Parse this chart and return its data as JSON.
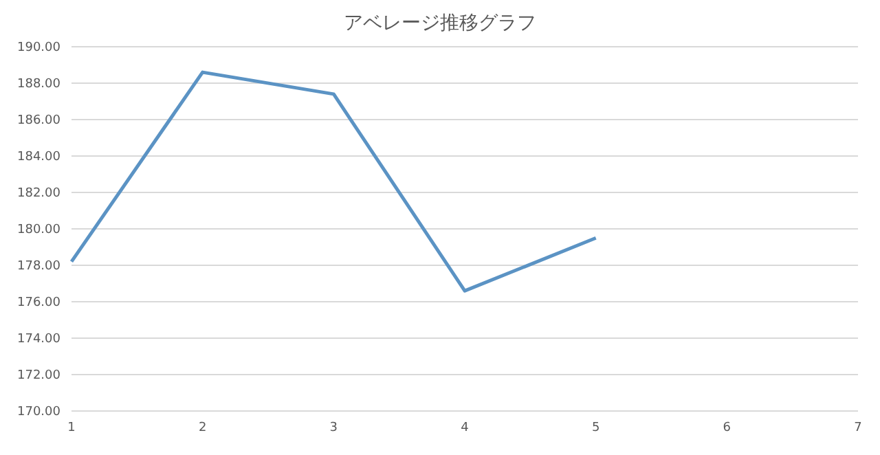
{
  "chart_data": {
    "type": "line",
    "title": "アベレージ推移グラフ",
    "categories": [
      "1",
      "2",
      "3",
      "4",
      "5",
      "6",
      "7"
    ],
    "series": [
      {
        "color": "#5b93c4",
        "values": [
          178.2,
          188.6,
          187.4,
          176.6,
          179.5,
          null,
          null
        ]
      }
    ],
    "ylim": [
      170,
      190
    ],
    "yticks": [
      {
        "value": 170,
        "label": "170.00"
      },
      {
        "value": 172,
        "label": "172.00"
      },
      {
        "value": 174,
        "label": "174.00"
      },
      {
        "value": 176,
        "label": "176.00"
      },
      {
        "value": 178,
        "label": "178.00"
      },
      {
        "value": 180,
        "label": "180.00"
      },
      {
        "value": 182,
        "label": "182.00"
      },
      {
        "value": 184,
        "label": "184.00"
      },
      {
        "value": 186,
        "label": "186.00"
      },
      {
        "value": 188,
        "label": "188.00"
      },
      {
        "value": 190,
        "label": "190.00"
      }
    ],
    "grid": "y",
    "legend": false,
    "marker": "none",
    "line_style": "solid"
  }
}
